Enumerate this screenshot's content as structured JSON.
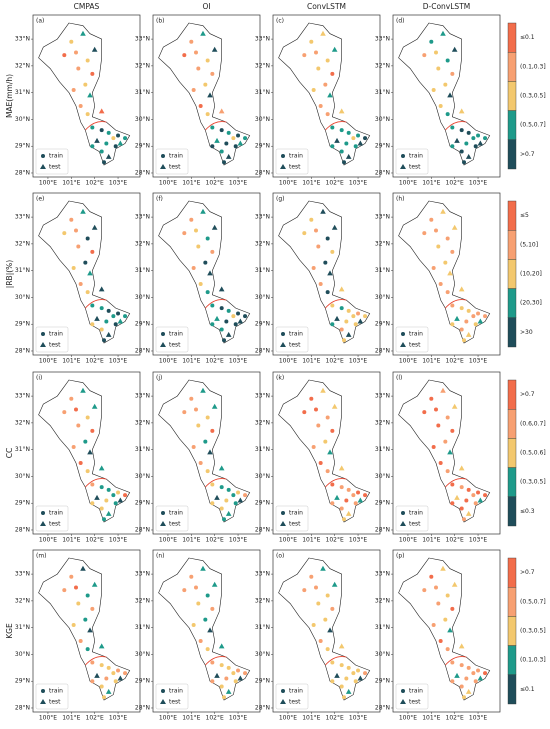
{
  "columns": [
    "CMPAS",
    "OI",
    "ConvLSTM",
    "D-ConvLSTM"
  ],
  "legend": [
    "train",
    "test"
  ],
  "xlim": [
    99.36,
    103.94
  ],
  "ylim": [
    27.85,
    33.9
  ],
  "xticks": [
    {
      "value": 100,
      "label": "100°E"
    },
    {
      "value": 101,
      "label": "101°E"
    },
    {
      "value": 102,
      "label": "102°E"
    },
    {
      "value": 103,
      "label": "103°E"
    }
  ],
  "yticks": [
    {
      "value": 28,
      "label": "28°N"
    },
    {
      "value": 29,
      "label": "29°N"
    },
    {
      "value": 30,
      "label": "30°N"
    },
    {
      "value": 31,
      "label": "31°N"
    },
    {
      "value": 32,
      "label": "32°N"
    },
    {
      "value": 33,
      "label": "33°N"
    }
  ],
  "stations": {
    "lon": [
      101.0,
      101.5,
      101.2,
      101.7,
      102.0,
      100.7,
      101.3,
      101.9,
      101.6,
      101.1,
      101.8,
      101.4,
      101.7,
      102.3,
      101.9,
      102.3,
      102.6,
      103.0,
      103.3,
      102.1,
      102.5,
      102.9,
      102.3,
      102.6,
      102.8,
      101.9,
      102.4,
      103.1
    ],
    "lat": [
      32.9,
      33.2,
      32.5,
      32.2,
      32.6,
      32.4,
      31.9,
      31.7,
      31.3,
      31.1,
      30.9,
      30.5,
      30.2,
      30.3,
      29.7,
      29.6,
      29.5,
      29.4,
      29.3,
      29.2,
      29.1,
      29.0,
      28.8,
      28.6,
      29.3,
      29.0,
      28.4,
      29.1
    ],
    "kind": [
      0,
      1,
      0,
      0,
      1,
      0,
      0,
      0,
      0,
      0,
      1,
      0,
      0,
      1,
      0,
      0,
      0,
      0,
      0,
      1,
      0,
      0,
      0,
      1,
      0,
      0,
      0,
      1
    ]
  },
  "rows": [
    {
      "label": "MAE(mm/h)",
      "bins": [
        "≤0.1",
        "(0.1,0.3]",
        "(0.3,0.5]",
        "(0.5,0.7]",
        ">0.7"
      ],
      "colors": [
        "#f26d4b",
        "#f7a072",
        "#f3c86e",
        "#1e9a8a",
        "#1f4d5a"
      ],
      "panels": [
        {
          "tag": "(a)",
          "classes": [
            2,
            3,
            1,
            2,
            4,
            0,
            1,
            0,
            2,
            1,
            3,
            1,
            2,
            0,
            3,
            4,
            3,
            4,
            3,
            4,
            3,
            4,
            3,
            4,
            2,
            3,
            4,
            3
          ]
        },
        {
          "tag": "(b)",
          "classes": [
            1,
            3,
            1,
            2,
            4,
            0,
            1,
            1,
            2,
            1,
            4,
            0,
            2,
            1,
            3,
            4,
            3,
            4,
            3,
            3,
            4,
            4,
            3,
            4,
            2,
            4,
            4,
            3
          ]
        },
        {
          "tag": "(c)",
          "classes": [
            2,
            2,
            1,
            2,
            3,
            1,
            2,
            0,
            1,
            2,
            3,
            1,
            1,
            2,
            3,
            3,
            3,
            3,
            4,
            4,
            3,
            3,
            3,
            4,
            2,
            3,
            4,
            4
          ]
        },
        {
          "tag": "(d)",
          "classes": [
            3,
            3,
            2,
            3,
            4,
            1,
            2,
            1,
            2,
            2,
            4,
            2,
            3,
            2,
            3,
            4,
            4,
            3,
            3,
            4,
            3,
            4,
            4,
            4,
            3,
            3,
            4,
            4
          ]
        }
      ]
    },
    {
      "label": "|RB|(%)",
      "bins": [
        "≤5",
        "(5,10]",
        "(10,20]",
        "(20,30]",
        ">30"
      ],
      "colors": [
        "#f26d4b",
        "#f7a072",
        "#f3c86e",
        "#1e9a8a",
        "#1f4d5a"
      ],
      "panels": [
        {
          "tag": "(e)",
          "classes": [
            1,
            3,
            1,
            4,
            4,
            2,
            1,
            0,
            4,
            2,
            3,
            1,
            2,
            4,
            3,
            3,
            4,
            4,
            3,
            4,
            3,
            4,
            2,
            4,
            3,
            2,
            4,
            3
          ]
        },
        {
          "tag": "(f)",
          "classes": [
            1,
            3,
            2,
            3,
            4,
            1,
            2,
            1,
            4,
            1,
            4,
            2,
            3,
            4,
            3,
            4,
            3,
            4,
            4,
            3,
            4,
            4,
            3,
            4,
            2,
            3,
            4,
            4
          ]
        },
        {
          "tag": "(g)",
          "classes": [
            2,
            4,
            1,
            4,
            4,
            2,
            1,
            2,
            4,
            1,
            4,
            1,
            4,
            2,
            2,
            3,
            2,
            1,
            2,
            4,
            2,
            2,
            1,
            4,
            2,
            3,
            2,
            4
          ]
        },
        {
          "tag": "(h)",
          "classes": [
            1,
            2,
            1,
            1,
            2,
            1,
            2,
            1,
            2,
            1,
            2,
            1,
            1,
            2,
            1,
            2,
            2,
            1,
            1,
            3,
            1,
            2,
            1,
            2,
            1,
            2,
            2,
            3
          ]
        }
      ]
    },
    {
      "label": "CC",
      "bins": [
        ">0.7",
        "(0.6,0.7]",
        "(0.5,0.6]",
        "(0.3,0.5]",
        "≤0.3"
      ],
      "colors": [
        "#f26d4b",
        "#f7a072",
        "#f3c86e",
        "#1e9a8a",
        "#1f4d5a"
      ],
      "panels": [
        {
          "tag": "(i)",
          "classes": [
            1,
            3,
            0,
            2,
            3,
            1,
            1,
            0,
            3,
            1,
            4,
            0,
            2,
            3,
            1,
            3,
            3,
            2,
            0,
            4,
            2,
            3,
            2,
            3,
            3,
            2,
            3,
            4
          ]
        },
        {
          "tag": "(j)",
          "classes": [
            1,
            3,
            1,
            2,
            3,
            1,
            2,
            0,
            3,
            1,
            4,
            1,
            2,
            3,
            2,
            3,
            3,
            2,
            1,
            4,
            2,
            3,
            2,
            3,
            3,
            2,
            3,
            4
          ]
        },
        {
          "tag": "(k)",
          "classes": [
            0,
            2,
            0,
            1,
            2,
            0,
            1,
            0,
            2,
            1,
            3,
            0,
            1,
            2,
            0,
            1,
            1,
            0,
            0,
            3,
            0,
            1,
            1,
            2,
            1,
            1,
            2,
            3
          ]
        },
        {
          "tag": "(l)",
          "classes": [
            0,
            1,
            0,
            1,
            2,
            0,
            0,
            0,
            1,
            0,
            3,
            0,
            1,
            2,
            0,
            1,
            0,
            0,
            0,
            2,
            0,
            1,
            0,
            2,
            1,
            0,
            1,
            3
          ]
        }
      ]
    },
    {
      "label": "KGE",
      "bins": [
        ">0.7",
        "(0.5,0.7]",
        "(0.3,0.5]",
        "(0.1,0.3]",
        "≤0.1"
      ],
      "colors": [
        "#f26d4b",
        "#f7a072",
        "#f3c86e",
        "#1e9a8a",
        "#1f4d5a"
      ],
      "panels": [
        {
          "tag": "(m)",
          "classes": [
            1,
            4,
            0,
            3,
            3,
            1,
            2,
            1,
            3,
            2,
            4,
            1,
            3,
            3,
            1,
            2,
            2,
            1,
            1,
            4,
            1,
            2,
            2,
            3,
            2,
            1,
            2,
            4
          ]
        },
        {
          "tag": "(n)",
          "classes": [
            1,
            3,
            1,
            3,
            3,
            1,
            2,
            1,
            3,
            2,
            4,
            1,
            2,
            3,
            1,
            2,
            2,
            1,
            1,
            4,
            1,
            2,
            2,
            3,
            2,
            1,
            2,
            4
          ]
        },
        {
          "tag": "(o)",
          "classes": [
            1,
            3,
            1,
            2,
            3,
            1,
            2,
            1,
            2,
            2,
            4,
            1,
            2,
            2,
            2,
            2,
            2,
            2,
            1,
            4,
            2,
            2,
            2,
            3,
            2,
            2,
            2,
            4
          ]
        },
        {
          "tag": "(p)",
          "classes": [
            0,
            2,
            1,
            2,
            2,
            1,
            1,
            0,
            2,
            1,
            3,
            0,
            1,
            2,
            1,
            1,
            1,
            1,
            0,
            3,
            1,
            1,
            1,
            2,
            1,
            1,
            2,
            3
          ]
        }
      ]
    }
  ]
}
